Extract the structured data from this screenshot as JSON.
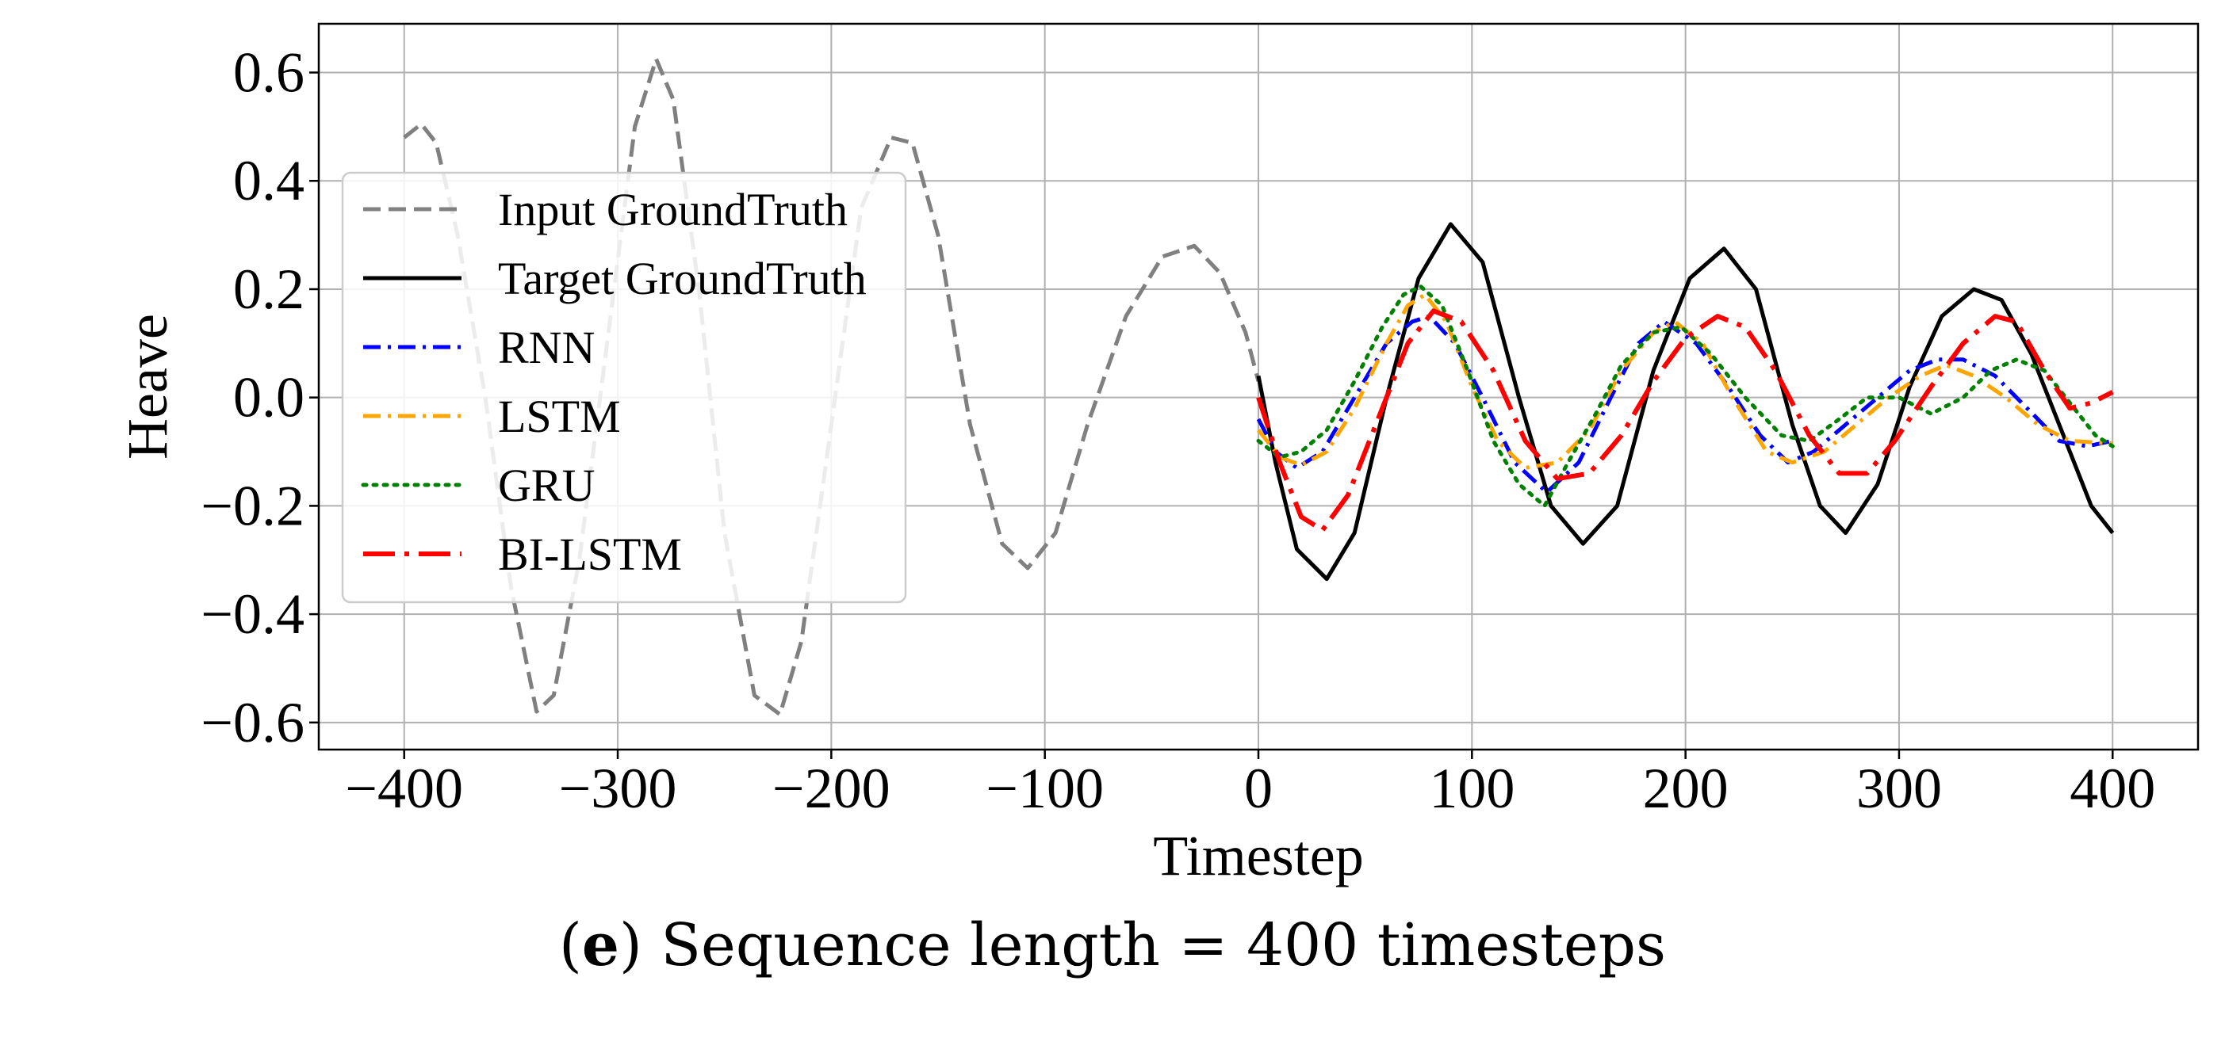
{
  "chart_data": {
    "type": "line",
    "title": "",
    "xlabel": "Timestep",
    "ylabel": "Heave",
    "xlim": [
      -440,
      440
    ],
    "ylim": [
      -0.65,
      0.69
    ],
    "xticks": [
      -400,
      -300,
      -200,
      -100,
      0,
      100,
      200,
      300,
      400
    ],
    "yticks": [
      0.6,
      0.4,
      0.2,
      0.0,
      -0.2,
      -0.4,
      -0.6
    ],
    "xtick_labels": [
      "−400",
      "−300",
      "−200",
      "−100",
      "0",
      "100",
      "200",
      "300",
      "400"
    ],
    "ytick_labels": [
      "0.6",
      "0.4",
      "0.2",
      "0.0",
      "−0.2",
      "−0.4",
      "−0.6"
    ],
    "grid": true,
    "legend_position": "upper-left",
    "series": [
      {
        "name": "Input GroundTruth",
        "color": "#808080",
        "style": "dashed",
        "points": [
          [
            -400,
            0.48
          ],
          [
            -392,
            0.505
          ],
          [
            -385,
            0.47
          ],
          [
            -375,
            0.3
          ],
          [
            -362,
            0.0
          ],
          [
            -350,
            -0.35
          ],
          [
            -338,
            -0.58
          ],
          [
            -330,
            -0.55
          ],
          [
            -318,
            -0.3
          ],
          [
            -305,
            0.1
          ],
          [
            -292,
            0.5
          ],
          [
            -282,
            0.625
          ],
          [
            -274,
            0.55
          ],
          [
            -262,
            0.2
          ],
          [
            -250,
            -0.25
          ],
          [
            -236,
            -0.55
          ],
          [
            -224,
            -0.585
          ],
          [
            -214,
            -0.45
          ],
          [
            -200,
            -0.05
          ],
          [
            -186,
            0.35
          ],
          [
            -172,
            0.48
          ],
          [
            -162,
            0.47
          ],
          [
            -150,
            0.3
          ],
          [
            -135,
            -0.05
          ],
          [
            -120,
            -0.27
          ],
          [
            -108,
            -0.315
          ],
          [
            -95,
            -0.25
          ],
          [
            -80,
            -0.05
          ],
          [
            -62,
            0.15
          ],
          [
            -45,
            0.26
          ],
          [
            -30,
            0.28
          ],
          [
            -18,
            0.23
          ],
          [
            -6,
            0.12
          ],
          [
            0,
            0.03
          ]
        ]
      },
      {
        "name": "Target GroundTruth",
        "color": "#000000",
        "style": "solid",
        "points": [
          [
            0,
            0.04
          ],
          [
            8,
            -0.12
          ],
          [
            18,
            -0.28
          ],
          [
            32,
            -0.335
          ],
          [
            45,
            -0.25
          ],
          [
            60,
            0.0
          ],
          [
            75,
            0.22
          ],
          [
            90,
            0.32
          ],
          [
            105,
            0.25
          ],
          [
            122,
            0.0
          ],
          [
            137,
            -0.2
          ],
          [
            152,
            -0.27
          ],
          [
            168,
            -0.2
          ],
          [
            185,
            0.05
          ],
          [
            202,
            0.22
          ],
          [
            218,
            0.275
          ],
          [
            233,
            0.2
          ],
          [
            250,
            -0.05
          ],
          [
            263,
            -0.2
          ],
          [
            275,
            -0.25
          ],
          [
            290,
            -0.16
          ],
          [
            305,
            0.02
          ],
          [
            320,
            0.15
          ],
          [
            335,
            0.2
          ],
          [
            348,
            0.18
          ],
          [
            362,
            0.08
          ],
          [
            378,
            -0.08
          ],
          [
            390,
            -0.2
          ],
          [
            400,
            -0.25
          ]
        ]
      },
      {
        "name": "RNN",
        "color": "#0000ff",
        "style": "dashdot",
        "points": [
          [
            0,
            -0.04
          ],
          [
            8,
            -0.1
          ],
          [
            18,
            -0.13
          ],
          [
            30,
            -0.1
          ],
          [
            45,
            0.0
          ],
          [
            60,
            0.1
          ],
          [
            72,
            0.14
          ],
          [
            80,
            0.15
          ],
          [
            92,
            0.1
          ],
          [
            105,
            0.0
          ],
          [
            120,
            -0.12
          ],
          [
            135,
            -0.175
          ],
          [
            150,
            -0.12
          ],
          [
            165,
            0.0
          ],
          [
            178,
            0.1
          ],
          [
            190,
            0.14
          ],
          [
            205,
            0.1
          ],
          [
            220,
            0.02
          ],
          [
            235,
            -0.07
          ],
          [
            248,
            -0.12
          ],
          [
            260,
            -0.1
          ],
          [
            275,
            -0.05
          ],
          [
            290,
            0.0
          ],
          [
            305,
            0.05
          ],
          [
            318,
            0.07
          ],
          [
            330,
            0.07
          ],
          [
            345,
            0.04
          ],
          [
            360,
            -0.02
          ],
          [
            375,
            -0.08
          ],
          [
            388,
            -0.09
          ],
          [
            400,
            -0.08
          ]
        ]
      },
      {
        "name": "LSTM",
        "color": "#ffa500",
        "style": "dashdot",
        "points": [
          [
            0,
            -0.06
          ],
          [
            10,
            -0.11
          ],
          [
            20,
            -0.125
          ],
          [
            32,
            -0.1
          ],
          [
            45,
            -0.02
          ],
          [
            60,
            0.1
          ],
          [
            70,
            0.17
          ],
          [
            78,
            0.19
          ],
          [
            88,
            0.14
          ],
          [
            100,
            0.02
          ],
          [
            112,
            -0.08
          ],
          [
            125,
            -0.13
          ],
          [
            140,
            -0.12
          ],
          [
            155,
            -0.06
          ],
          [
            170,
            0.05
          ],
          [
            185,
            0.12
          ],
          [
            195,
            0.14
          ],
          [
            208,
            0.1
          ],
          [
            222,
            0.0
          ],
          [
            238,
            -0.1
          ],
          [
            250,
            -0.12
          ],
          [
            265,
            -0.1
          ],
          [
            280,
            -0.05
          ],
          [
            295,
            0.0
          ],
          [
            310,
            0.04
          ],
          [
            322,
            0.06
          ],
          [
            335,
            0.04
          ],
          [
            350,
            0.0
          ],
          [
            365,
            -0.05
          ],
          [
            380,
            -0.08
          ],
          [
            400,
            -0.085
          ]
        ]
      },
      {
        "name": "GRU",
        "color": "#008000",
        "style": "dotted",
        "points": [
          [
            0,
            -0.08
          ],
          [
            10,
            -0.11
          ],
          [
            20,
            -0.1
          ],
          [
            32,
            -0.06
          ],
          [
            45,
            0.03
          ],
          [
            58,
            0.13
          ],
          [
            68,
            0.19
          ],
          [
            76,
            0.205
          ],
          [
            86,
            0.17
          ],
          [
            98,
            0.05
          ],
          [
            110,
            -0.08
          ],
          [
            122,
            -0.16
          ],
          [
            134,
            -0.2
          ],
          [
            145,
            -0.12
          ],
          [
            158,
            -0.03
          ],
          [
            170,
            0.06
          ],
          [
            185,
            0.12
          ],
          [
            198,
            0.13
          ],
          [
            212,
            0.08
          ],
          [
            228,
            0.0
          ],
          [
            245,
            -0.07
          ],
          [
            258,
            -0.08
          ],
          [
            272,
            -0.04
          ],
          [
            285,
            0.0
          ],
          [
            300,
            0.0
          ],
          [
            315,
            -0.03
          ],
          [
            330,
            0.0
          ],
          [
            343,
            0.05
          ],
          [
            355,
            0.07
          ],
          [
            368,
            0.05
          ],
          [
            382,
            -0.02
          ],
          [
            392,
            -0.07
          ],
          [
            400,
            -0.09
          ]
        ]
      },
      {
        "name": "BI-LSTM",
        "color": "#ff0000",
        "style": "longdashdot",
        "points": [
          [
            0,
            0.0
          ],
          [
            10,
            -0.12
          ],
          [
            20,
            -0.22
          ],
          [
            30,
            -0.245
          ],
          [
            42,
            -0.18
          ],
          [
            55,
            -0.05
          ],
          [
            70,
            0.1
          ],
          [
            82,
            0.16
          ],
          [
            95,
            0.14
          ],
          [
            110,
            0.05
          ],
          [
            125,
            -0.08
          ],
          [
            140,
            -0.15
          ],
          [
            155,
            -0.14
          ],
          [
            170,
            -0.07
          ],
          [
            185,
            0.03
          ],
          [
            200,
            0.11
          ],
          [
            215,
            0.15
          ],
          [
            228,
            0.13
          ],
          [
            242,
            0.05
          ],
          [
            258,
            -0.07
          ],
          [
            272,
            -0.14
          ],
          [
            285,
            -0.14
          ],
          [
            298,
            -0.08
          ],
          [
            315,
            0.02
          ],
          [
            330,
            0.1
          ],
          [
            345,
            0.15
          ],
          [
            355,
            0.14
          ],
          [
            368,
            0.05
          ],
          [
            380,
            -0.02
          ],
          [
            390,
            -0.01
          ],
          [
            400,
            0.01
          ]
        ]
      }
    ]
  },
  "caption": {
    "label": "(e)",
    "label_open": "(",
    "label_letter": "e",
    "label_close": ")",
    "text": " Sequence length = 400 timesteps"
  }
}
